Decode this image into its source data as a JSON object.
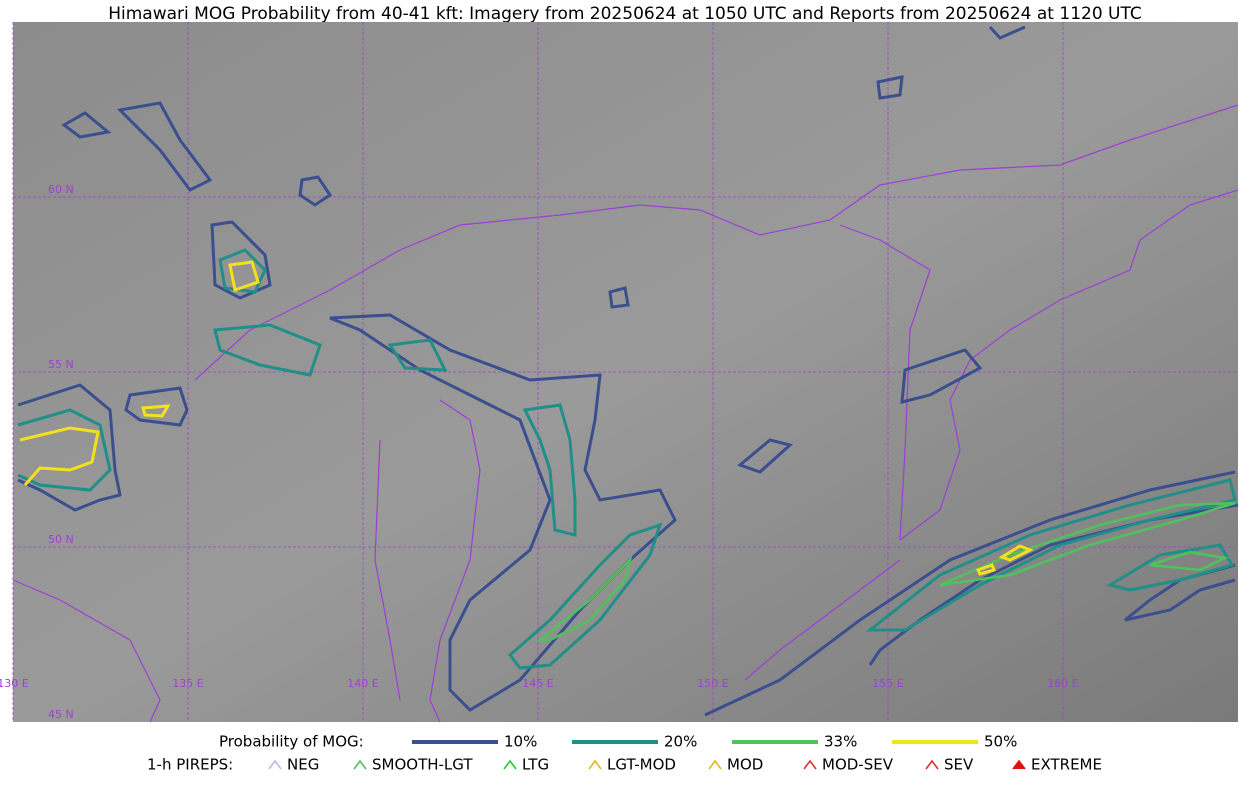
{
  "title": "Himawari MOG Probability from 40-41 kft: Imagery from 20250624 at 1050 UTC and Reports from 20250624 at 1120 UTC",
  "map": {
    "lat_labels": [
      "60 N",
      "55 N",
      "50 N",
      "45 N"
    ],
    "lon_labels": [
      "130 E",
      "135 E",
      "140 E",
      "145 E",
      "150 E",
      "155 E",
      "160 E"
    ]
  },
  "legend": {
    "mog_title": "Probability of MOG:",
    "mog_levels": [
      {
        "label": "10%",
        "color": "#3b4f8f"
      },
      {
        "label": "20%",
        "color": "#1f8f88"
      },
      {
        "label": "33%",
        "color": "#4ec35c"
      },
      {
        "label": "50%",
        "color": "#f4e11c"
      }
    ],
    "pirep_title": "1-h PIREPS:",
    "pireps": [
      "NEG",
      "SMOOTH-LGT",
      "LTG",
      "LGT-MOD",
      "MOD",
      "MOD-SEV",
      "SEV",
      "EXTREME"
    ]
  }
}
